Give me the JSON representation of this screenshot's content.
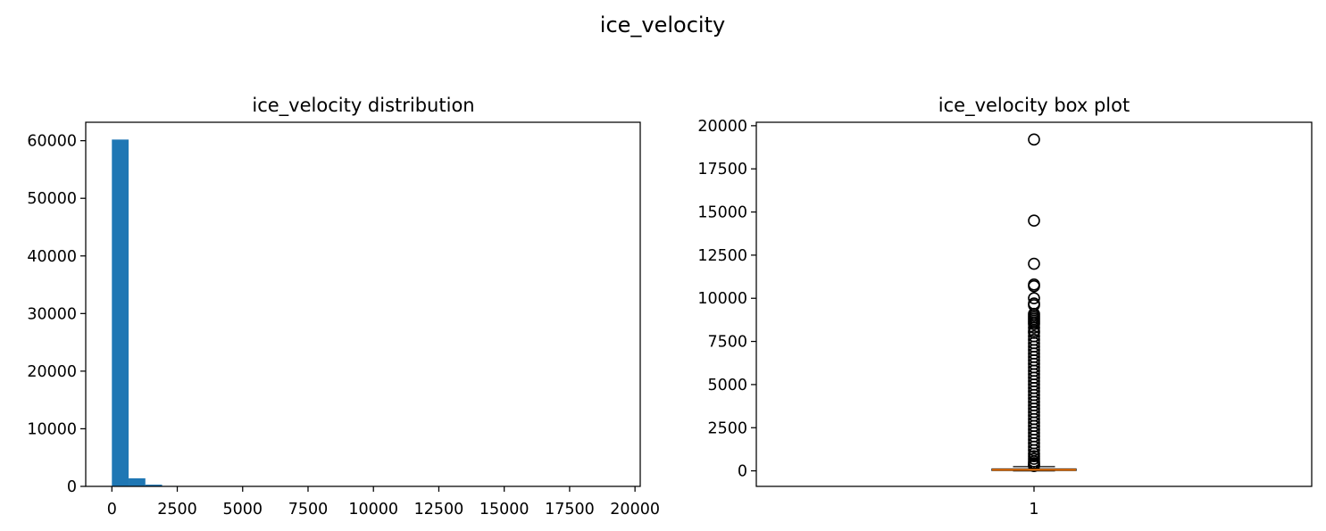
{
  "figure": {
    "suptitle": "ice_velocity"
  },
  "chart_data": [
    {
      "type": "bar",
      "title": "ice_velocity distribution",
      "xlabel": "",
      "ylabel": "",
      "xlim": [
        -1000,
        20200
      ],
      "ylim": [
        0,
        63200
      ],
      "xticks": [
        0,
        2500,
        5000,
        7500,
        10000,
        12500,
        15000,
        17500,
        20000
      ],
      "yticks": [
        0,
        10000,
        20000,
        30000,
        40000,
        50000,
        60000
      ],
      "bins": {
        "start": 0,
        "width": 640,
        "counts": [
          60200,
          1400,
          300,
          80,
          30,
          12,
          8,
          5,
          3,
          2,
          2,
          1,
          1,
          0,
          0,
          0,
          0,
          0,
          0,
          0,
          0,
          0,
          0,
          0,
          0,
          0,
          0,
          0,
          0,
          1
        ]
      },
      "color": "#1f77b4",
      "grid": false
    },
    {
      "type": "box",
      "title": "ice_velocity box plot",
      "xlabel": "",
      "ylabel": "",
      "xlim": [
        0.5,
        1.5
      ],
      "ylim": [
        -900,
        20200
      ],
      "categories": [
        "1"
      ],
      "yticks": [
        0,
        2500,
        5000,
        7500,
        10000,
        12500,
        15000,
        17500,
        20000
      ],
      "box": {
        "q1": 20,
        "median": 60,
        "q3": 110,
        "whisker_low": 0,
        "whisker_high": 245
      },
      "outliers": [
        19200,
        14500,
        12000,
        10800,
        10700,
        10000,
        9700,
        9600,
        9100,
        9000,
        8900,
        8800,
        8700,
        8600,
        8500,
        8300,
        8100,
        8000,
        7800,
        7600,
        7400,
        7200,
        7000,
        6800,
        6600,
        6400,
        6200,
        6000,
        5800,
        5600,
        5400,
        5200,
        5000,
        4800,
        4600,
        4400,
        4200,
        4000,
        3800,
        3600,
        3400,
        3200,
        3000,
        2800,
        2600,
        2400,
        2200,
        2000,
        1800,
        1600,
        1400,
        1200,
        1000,
        850,
        700,
        550,
        450,
        380,
        320,
        280
      ],
      "median_color": "#ff7f0e",
      "grid": false
    }
  ]
}
